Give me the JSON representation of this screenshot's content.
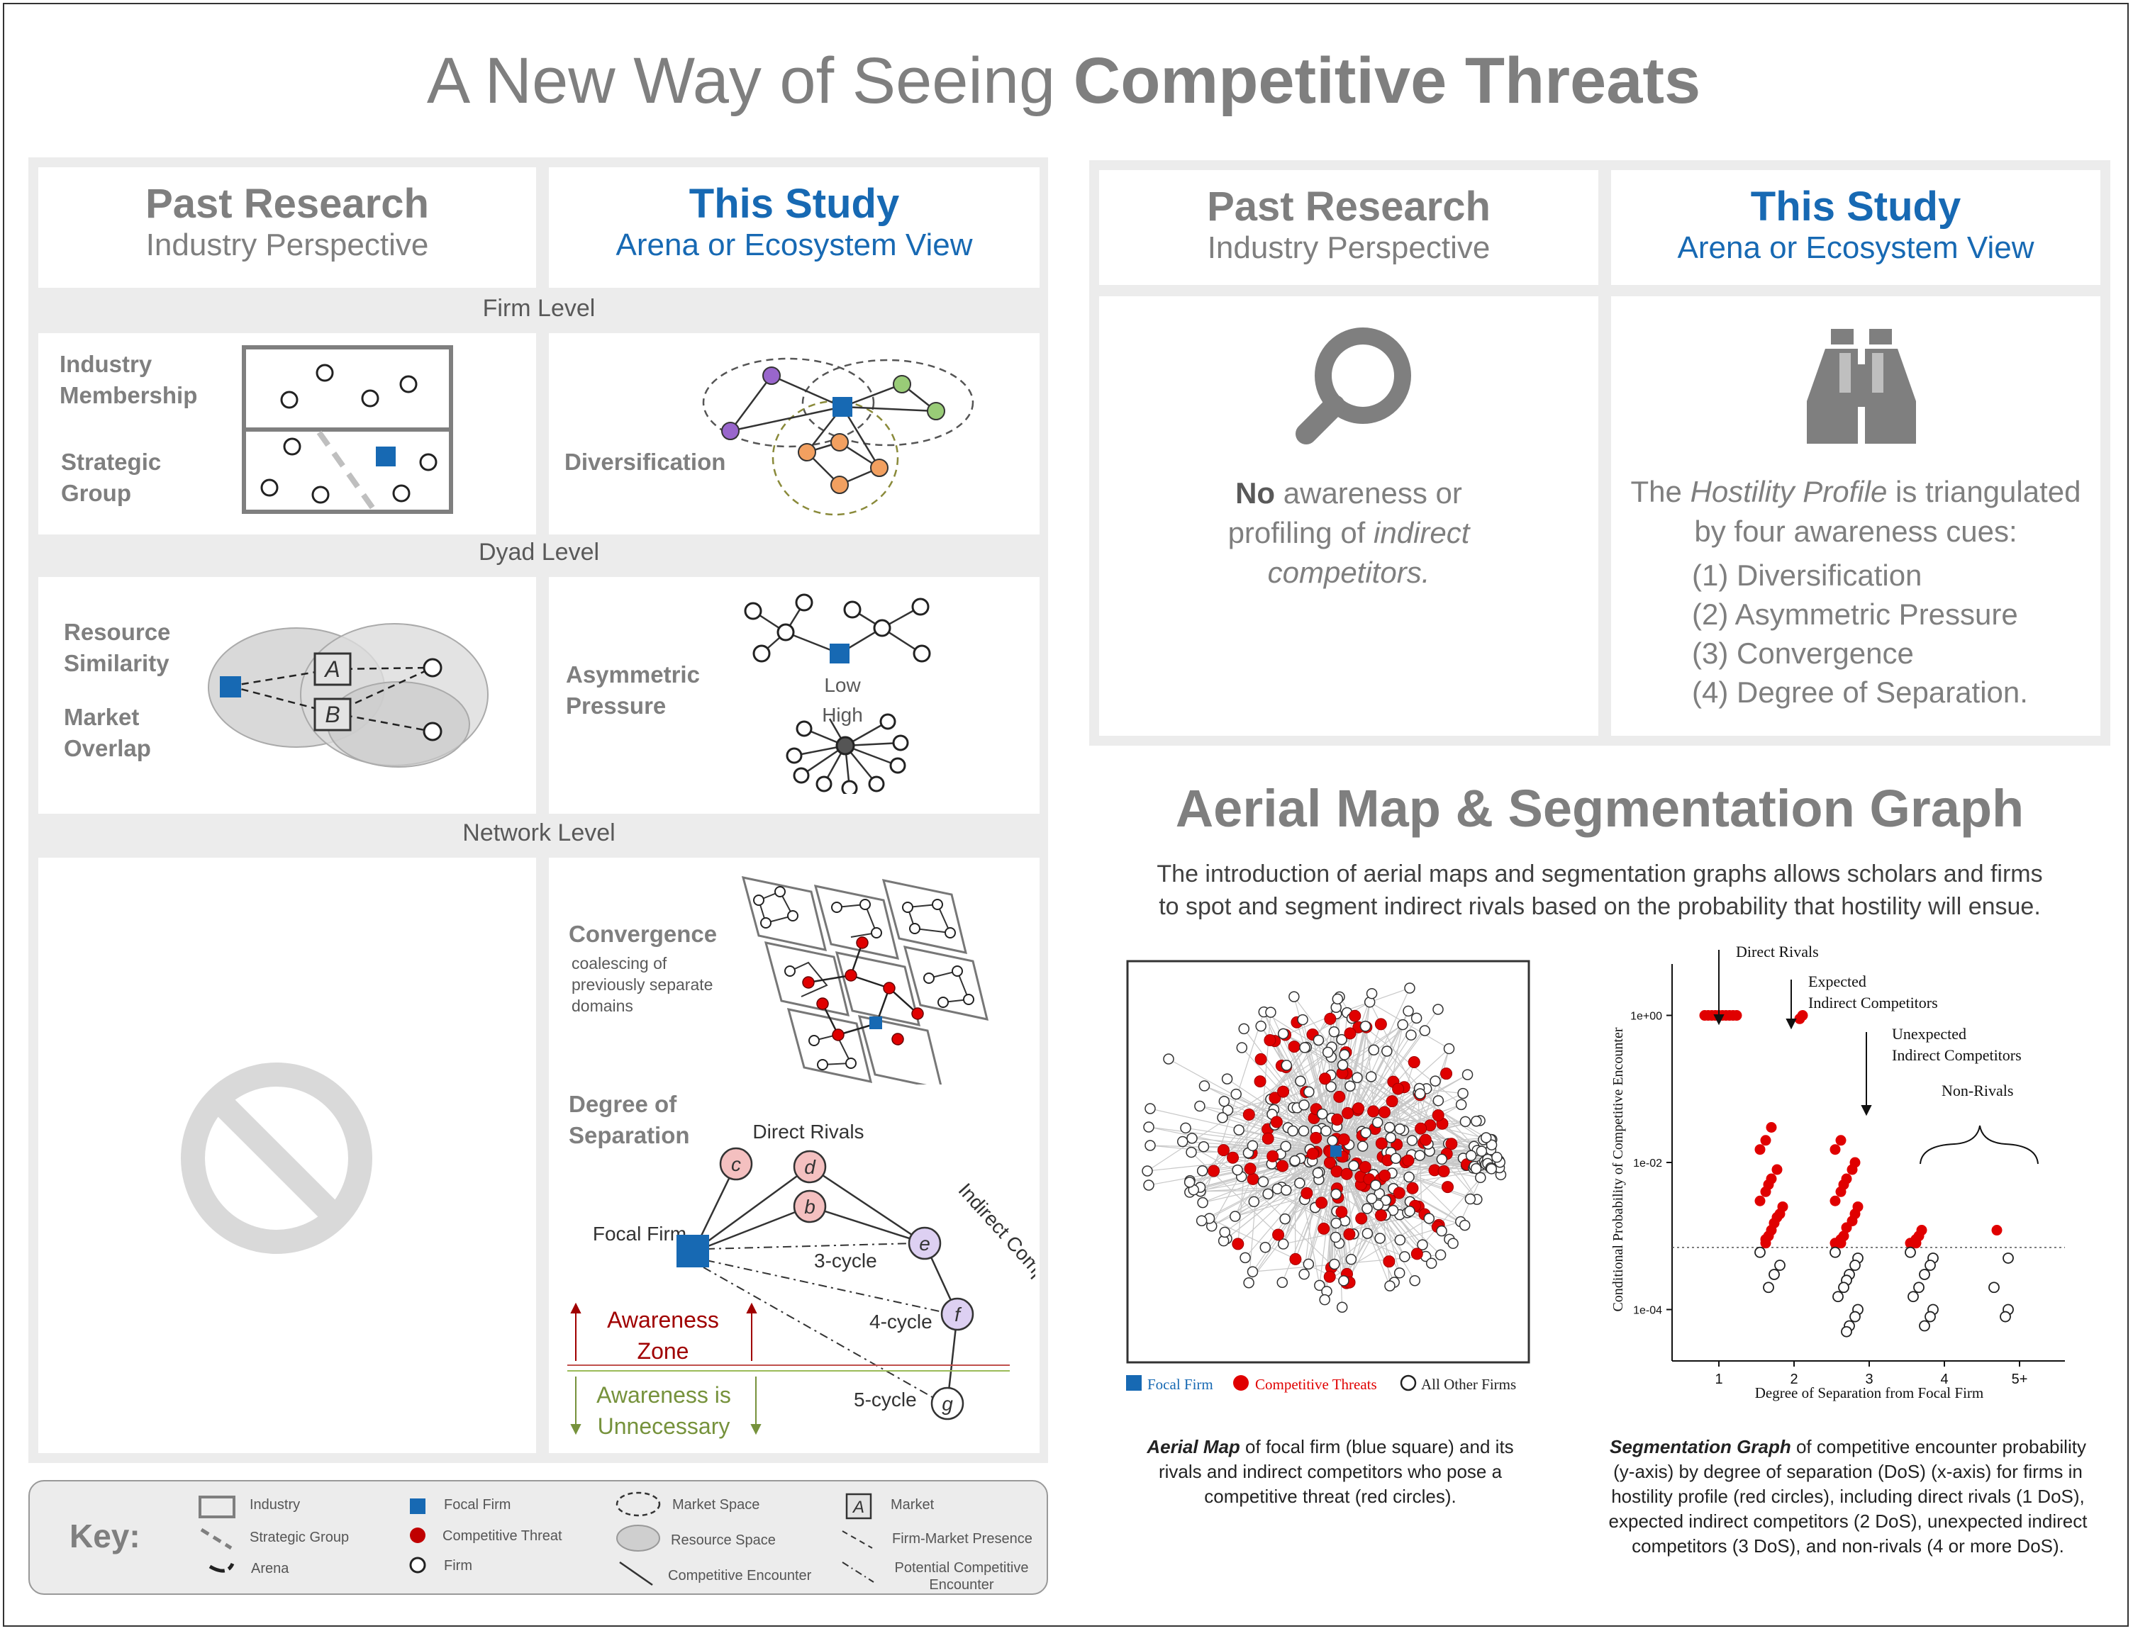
{
  "title": {
    "part1": "A New Way of Seeing ",
    "part2": "Competitive Threats"
  },
  "left": {
    "col1": {
      "title": "Past Research",
      "subtitle": "Industry Perspective"
    },
    "col2": {
      "title": "This Study",
      "subtitle": "Arena or Ecosystem View"
    },
    "firm_level": "Firm Level",
    "dyad_level": "Dyad Level",
    "network_level": "Network Level",
    "industry_membership": "Industry Membership",
    "strategic_group": "Strategic Group",
    "diversification": "Diversification",
    "resource_similarity": "Resource Similarity",
    "market_overlap": "Market Overlap",
    "asymmetric_pressure": "Asymmetric Pressure",
    "low": "Low",
    "high": "High",
    "market_a": "A",
    "market_b": "B",
    "convergence": "Convergence",
    "convergence_note": "coalescing of previously separate domains",
    "degree_of_separation": "Degree of Separation",
    "direct_rivals": "Direct Rivals",
    "indirect_competitors": "Indirect Competitors",
    "focal_firm": "Focal Firm",
    "node_b": "b",
    "node_c": "c",
    "node_d": "d",
    "node_e": "e",
    "node_f": "f",
    "node_g": "g",
    "cycle3": "3-cycle",
    "cycle4": "4-cycle",
    "cycle5": "5-cycle",
    "awareness_zone": "Awareness Zone",
    "awareness_unnecessary": "Awareness is Unnecessary"
  },
  "right": {
    "col1": {
      "title": "Past Research",
      "subtitle": "Industry Perspective"
    },
    "col2": {
      "title": "This Study",
      "subtitle": "Arena or Ecosystem View"
    },
    "no_bold": "No",
    "no_rest1": " awareness or",
    "no_rest2": "profiling of ",
    "no_italic1": "indirect",
    "no_italic2": "competitors.",
    "hp_line1a": "The ",
    "hp_line1b": "Hostility Profile",
    "hp_line1c": " is triangulated",
    "hp_line2": "by four awareness cues:",
    "cues": [
      "(1) Diversification",
      "(2) Asymmetric Pressure",
      "(3) Convergence",
      "(4) Degree of Separation."
    ],
    "section_title": "Aerial Map & Segmentation Graph",
    "section_text1": "The introduction of aerial maps and segmentation graphs allows scholars and firms",
    "section_text2": "to spot and segment indirect rivals based on the probability that hostility will ensue.",
    "map_legend": {
      "focal": "Focal Firm",
      "threats": "Competitive Threats",
      "others": "All Other Firms"
    },
    "map_caption_bold": "Aerial Map",
    "map_caption_rest": " of focal firm (blue square) and its rivals and indirect competitors who pose a competitive threat (red circles).",
    "graph_caption_bold": "Segmentation Graph",
    "graph_caption_rest": " of competitive encounter probability (y-axis) by degree of separation (DoS) (x-axis) for firms in hostility profile (red circles), including direct rivals (1 DoS), expected indirect competitors (2 DoS), unexpected indirect competitors (3 DoS), and non-rivals (4 or more DoS).",
    "colors": {
      "focal": "#1769b3",
      "threat": "#e00000",
      "other": "#ffffff"
    }
  },
  "chart_data": {
    "type": "scatter",
    "title": "",
    "xlabel": "Degree of Separation from Focal Firm",
    "ylabel": "Conditional Probability of Competitive Encounter",
    "x_ticks": [
      "1",
      "2",
      "3",
      "4",
      "5+"
    ],
    "y_ticks": [
      "1e+00",
      "1e-02",
      "1e-04"
    ],
    "y_scale": "log",
    "ylim": [
      2e-05,
      5
    ],
    "threshold": 0.0007,
    "annotations": [
      "Direct Rivals",
      "Expected Indirect Competitors",
      "Unexpected Indirect Competitors",
      "Non-Rivals"
    ],
    "series": [
      {
        "name": "hostility profile",
        "color": "#e00000",
        "points": [
          [
            1,
            1
          ],
          [
            1,
            1
          ],
          [
            1,
            1
          ],
          [
            1,
            1
          ],
          [
            1,
            1
          ],
          [
            1,
            1
          ],
          [
            1,
            1
          ],
          [
            1,
            1
          ],
          [
            1,
            1
          ],
          [
            1,
            1
          ],
          [
            2,
            1
          ],
          [
            2,
            0.9
          ],
          [
            2,
            0.03
          ],
          [
            2,
            0.02
          ],
          [
            2,
            0.015
          ],
          [
            2,
            0.008
          ],
          [
            2,
            0.006
          ],
          [
            2,
            0.005
          ],
          [
            2,
            0.004
          ],
          [
            2,
            0.003
          ],
          [
            2,
            0.0025
          ],
          [
            2,
            0.002
          ],
          [
            2,
            0.0018
          ],
          [
            2,
            0.0015
          ],
          [
            2,
            0.0012
          ],
          [
            2,
            0.001
          ],
          [
            2,
            0.0009
          ],
          [
            2,
            0.0008
          ],
          [
            3,
            0.02
          ],
          [
            3,
            0.015
          ],
          [
            3,
            0.01
          ],
          [
            3,
            0.008
          ],
          [
            3,
            0.006
          ],
          [
            3,
            0.005
          ],
          [
            3,
            0.004
          ],
          [
            3,
            0.003
          ],
          [
            3,
            0.0025
          ],
          [
            3,
            0.002
          ],
          [
            3,
            0.0016
          ],
          [
            3,
            0.0013
          ],
          [
            3,
            0.001
          ],
          [
            3,
            0.0009
          ],
          [
            3,
            0.0008
          ],
          [
            3,
            0.0008
          ],
          [
            4,
            0.0012
          ],
          [
            4,
            0.001
          ],
          [
            4,
            0.0009
          ],
          [
            4,
            0.0008
          ],
          [
            4,
            0.0008
          ],
          [
            5,
            0.0012
          ]
        ]
      },
      {
        "name": "other",
        "color": "#ffffff",
        "points": [
          [
            2,
            0.0006
          ],
          [
            2,
            0.0004
          ],
          [
            2,
            0.0003
          ],
          [
            2,
            0.0002
          ],
          [
            3,
            0.0006
          ],
          [
            3,
            0.0005
          ],
          [
            3,
            0.0004
          ],
          [
            3,
            0.0003
          ],
          [
            3,
            0.00025
          ],
          [
            3,
            0.0002
          ],
          [
            3,
            0.00015
          ],
          [
            3,
            0.0001
          ],
          [
            3,
            8e-05
          ],
          [
            3,
            6e-05
          ],
          [
            3,
            5e-05
          ],
          [
            4,
            0.0006
          ],
          [
            4,
            0.0005
          ],
          [
            4,
            0.0004
          ],
          [
            4,
            0.0003
          ],
          [
            4,
            0.0002
          ],
          [
            4,
            0.00015
          ],
          [
            4,
            0.0001
          ],
          [
            4,
            8e-05
          ],
          [
            4,
            6e-05
          ],
          [
            5,
            0.0005
          ],
          [
            5,
            0.0002
          ],
          [
            5,
            0.0001
          ],
          [
            5,
            8e-05
          ]
        ]
      }
    ]
  },
  "key": {
    "label": "Key:",
    "industry": "Industry",
    "strategic_group": "Strategic Group",
    "arena": "Arena",
    "focal_firm": "Focal Firm",
    "competitive_threat": "Competitive Threat",
    "firm": "Firm",
    "market_space": "Market Space",
    "resource_space": "Resource  Space",
    "competitive_encounter": "Competitive Encounter",
    "market": "Market",
    "market_letter": "A",
    "firm_market_presence": "Firm-Market Presence",
    "potential_encounter": "Potential Competitive Encounter"
  }
}
